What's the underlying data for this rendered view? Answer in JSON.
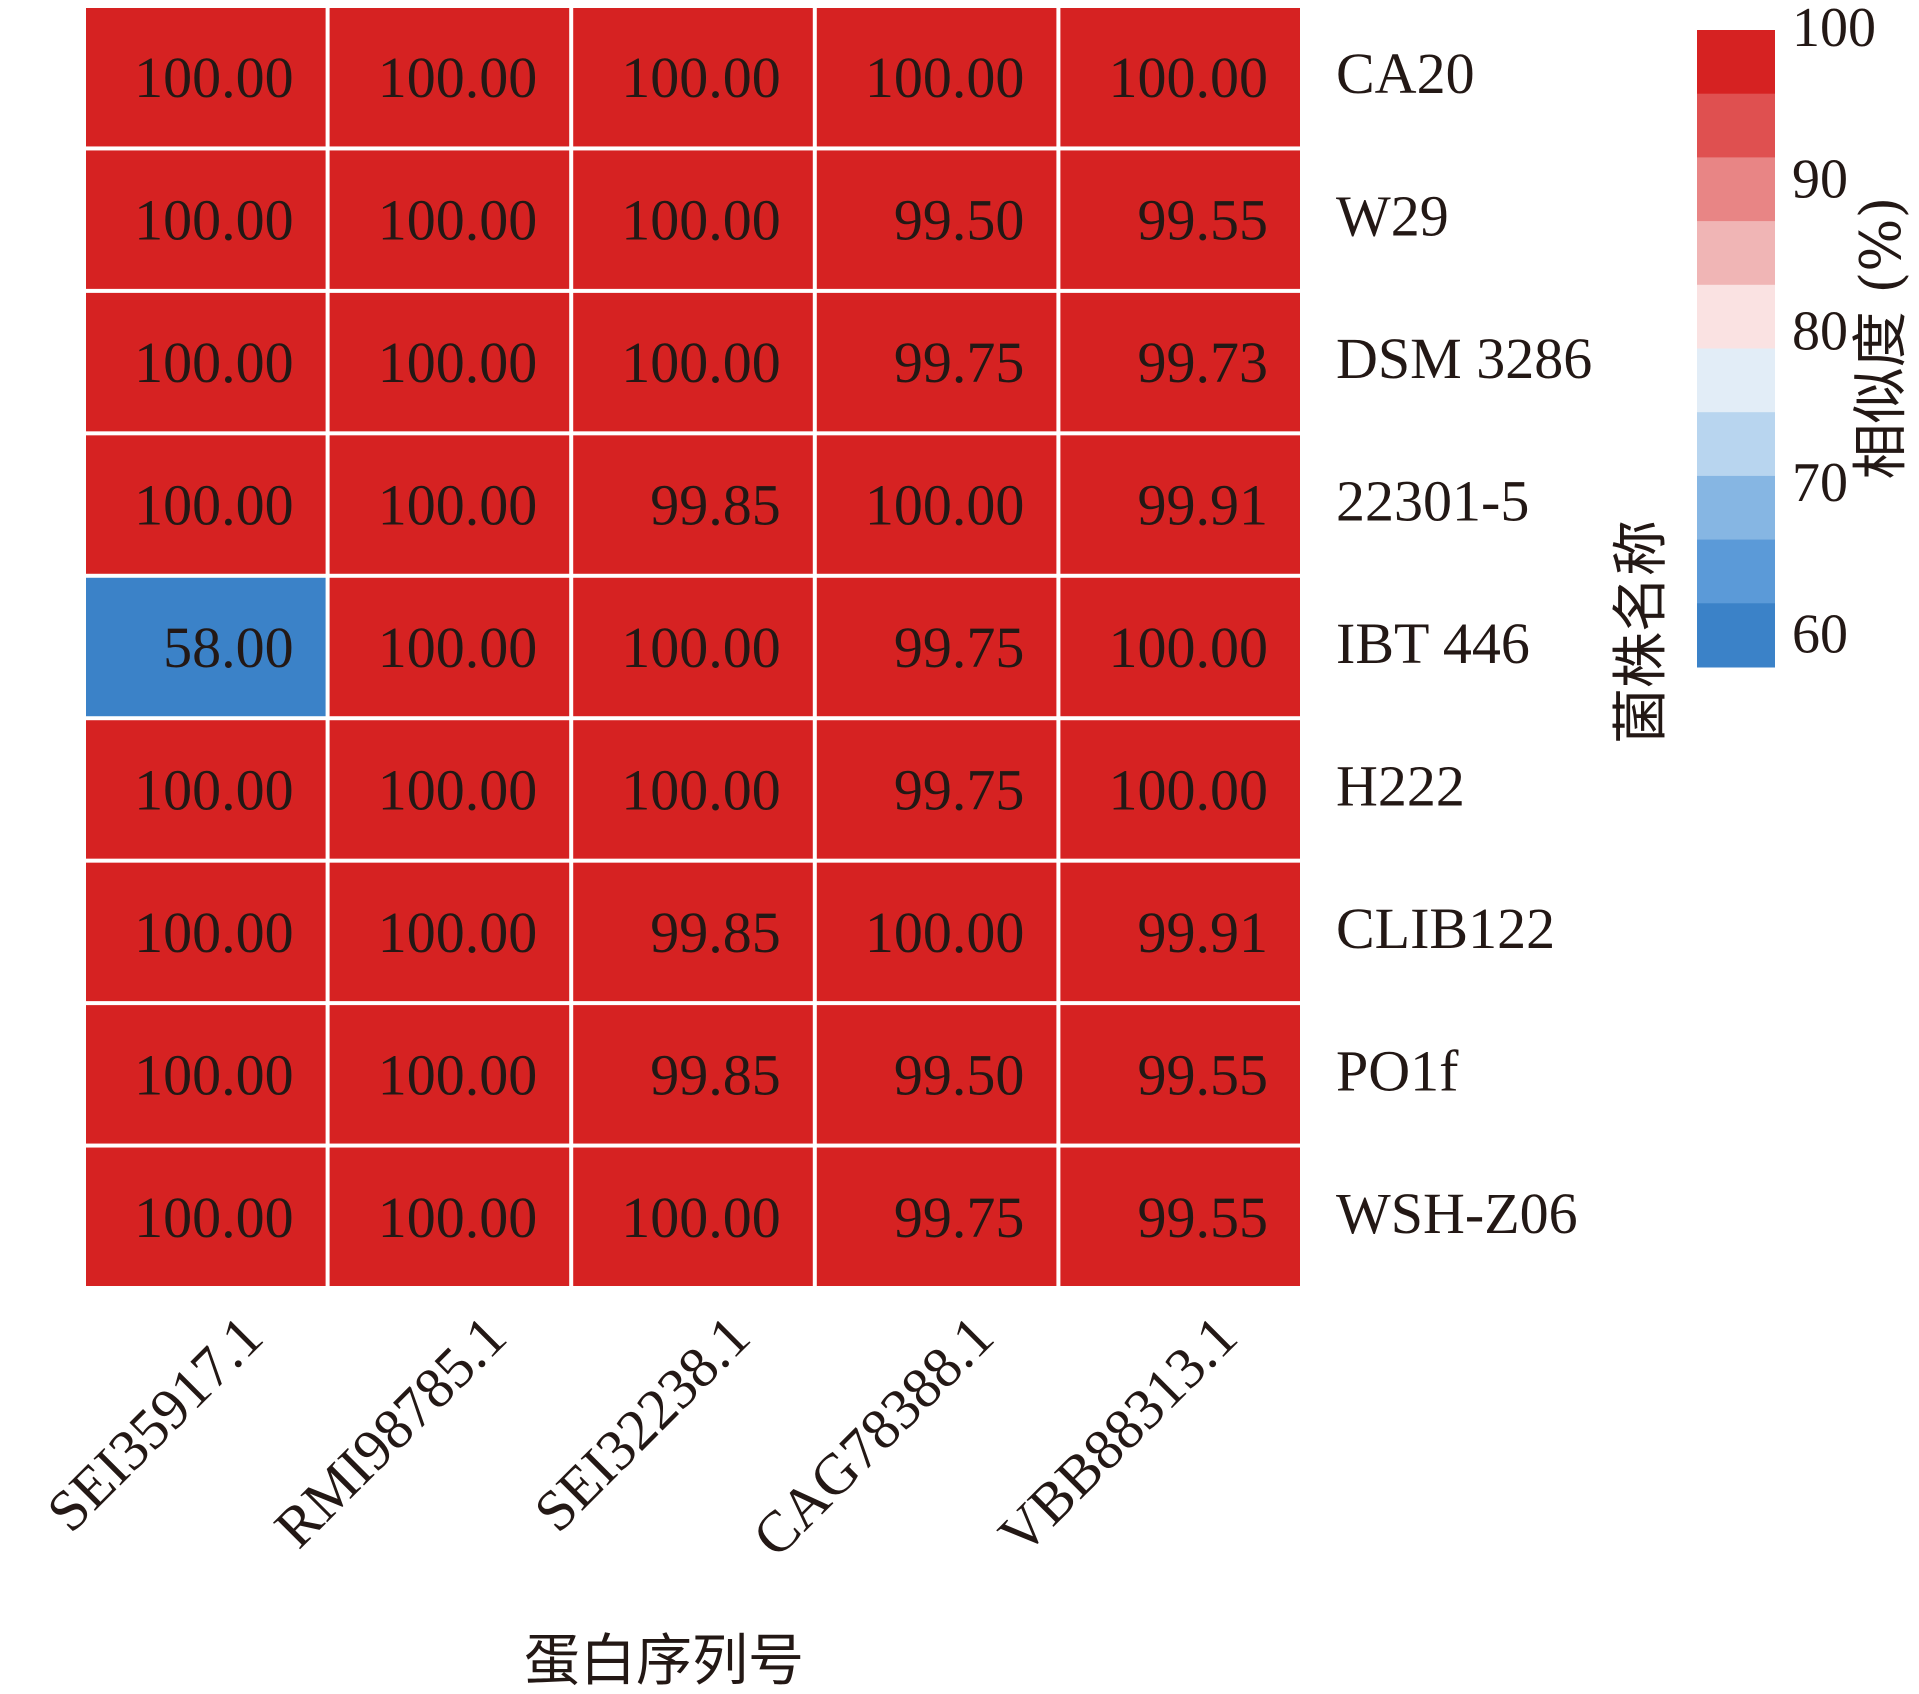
{
  "chart_data": {
    "type": "heatmap",
    "x_categories": [
      "SEI35917.1",
      "RMI98785.1",
      "SEI32238.1",
      "CAG78388.1",
      "VBB88313.1"
    ],
    "y_categories": [
      "CA20",
      "W29",
      "DSM 3286",
      "22301-5",
      "IBT 446",
      "H222",
      "CLIB122",
      "PO1f",
      "WSH-Z06"
    ],
    "values": [
      [
        "100.00",
        "100.00",
        "100.00",
        "100.00",
        "100.00"
      ],
      [
        "100.00",
        "100.00",
        "100.00",
        "99.50",
        "99.55"
      ],
      [
        "100.00",
        "100.00",
        "100.00",
        "99.75",
        "99.73"
      ],
      [
        "100.00",
        "100.00",
        "99.85",
        "100.00",
        "99.91"
      ],
      [
        "58.00",
        "100.00",
        "100.00",
        "99.75",
        "100.00"
      ],
      [
        "100.00",
        "100.00",
        "100.00",
        "99.75",
        "100.00"
      ],
      [
        "100.00",
        "100.00",
        "99.85",
        "100.00",
        "99.91"
      ],
      [
        "100.00",
        "100.00",
        "99.85",
        "99.50",
        "99.55"
      ],
      [
        "100.00",
        "100.00",
        "100.00",
        "99.75",
        "99.55"
      ]
    ],
    "xlabel": "蛋白序列号",
    "ylabel": "菌株名称",
    "colorbar": {
      "label": "相似度 (%)",
      "ticks": [
        "100",
        "90",
        "80",
        "70",
        "60"
      ],
      "range": [
        58,
        100
      ],
      "bands": [
        "#d62222",
        "#df5050",
        "#e88585",
        "#f0b5b5",
        "#fae2e2",
        "#e2edf7",
        "#b8d5ef",
        "#86b6e3",
        "#5b9ad8",
        "#3b82c8"
      ]
    },
    "cell_colors": {
      "high": "#d62222",
      "low": "#3b82c8",
      "low_threshold": 70
    }
  }
}
